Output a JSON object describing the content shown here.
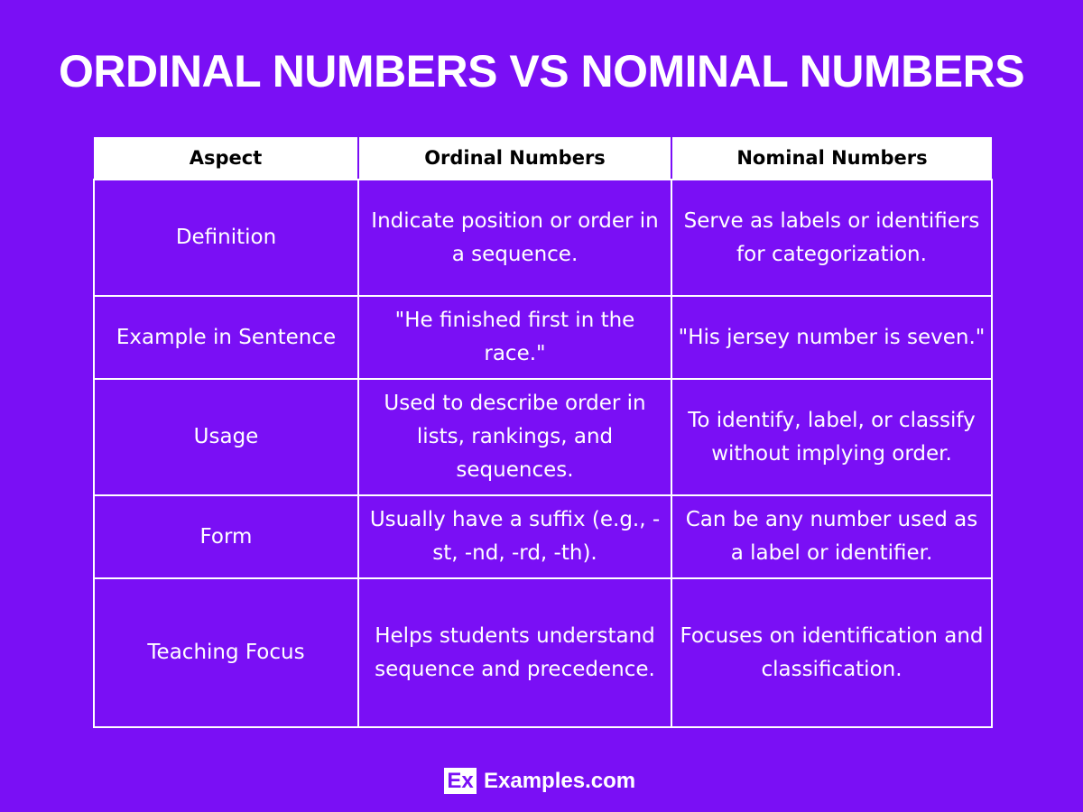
{
  "title": "ORDINAL NUMBERS VS NOMINAL NUMBERS",
  "colors": {
    "background": "#7a0ff5",
    "header_bg": "#ffffff",
    "text": "#ffffff"
  },
  "table": {
    "headers": [
      "Aspect",
      "Ordinal Numbers",
      "Nominal Numbers"
    ],
    "rows": [
      [
        "Definition",
        "Indicate position or order in a sequence.",
        "Serve as labels or identifiers for categorization."
      ],
      [
        "Example in Sentence",
        "\"He finished first in the race.\"",
        "\"His jersey number is seven.\""
      ],
      [
        "Usage",
        "Used to describe order in lists, rankings, and sequences.",
        "To identify, label, or classify without implying order."
      ],
      [
        "Form",
        "Usually have a suffix (e.g., -st, -nd, -rd, -th).",
        "Can be any number used as a label or identifier."
      ],
      [
        "Teaching Focus",
        "Helps students understand sequence and precedence.",
        "Focuses on identification and classification."
      ]
    ]
  },
  "footer": {
    "logo_mark": "Ex",
    "logo_text": "Examples.com"
  }
}
